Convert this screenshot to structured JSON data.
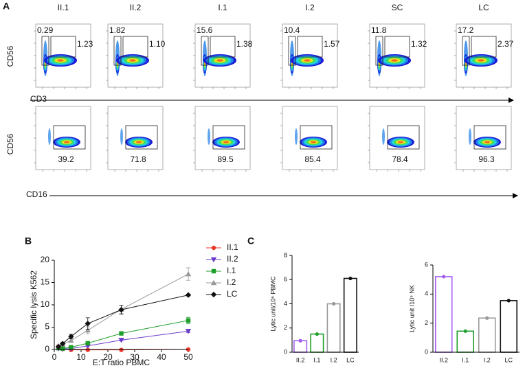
{
  "panel_labels": [
    "A",
    "B",
    "C"
  ],
  "flow": {
    "columns": [
      "II.1",
      "II.2",
      "I.1",
      "I.2",
      "SC",
      "LC"
    ],
    "row1_y_label": "CD56",
    "row1_x_label": "CD3",
    "row2_y_label": "CD56",
    "row2_x_label": "CD16",
    "row1_left_gates": [
      "0.29",
      "1.82",
      "15.6",
      "10.4",
      "11.8",
      "17.2"
    ],
    "row1_right_gates": [
      "1.23",
      "1.10",
      "1.38",
      "1.57",
      "1.32",
      "2.37"
    ],
    "row2_gates": [
      "39.2",
      "71.8",
      "89.5",
      "85.4",
      "78.4",
      "96.3"
    ]
  },
  "chart_data": [
    {
      "type": "line",
      "y_label": "Specific lysis K562",
      "x_label": "E:T ratio PBMC",
      "x": [
        1.5625,
        3.125,
        6.25,
        12.5,
        25,
        50
      ],
      "xlim": [
        0,
        50
      ],
      "xticks": [
        0,
        10,
        20,
        30,
        40,
        50
      ],
      "ylim": [
        0,
        20
      ],
      "yticks": [
        0,
        5,
        10,
        15,
        20
      ],
      "series": [
        {
          "name": "II.1",
          "color": "#e8392b",
          "marker": "circle",
          "values": [
            0.7,
            0.1,
            -0.1,
            -0.1,
            -0.1,
            0
          ],
          "errors": [
            0.3,
            0.1,
            0.1,
            0.1,
            0.1,
            0.1
          ]
        },
        {
          "name": "II.2",
          "color": "#6a3bc9",
          "marker": "triangle-down",
          "values": [
            0.2,
            0.1,
            0.2,
            0.8,
            2.1,
            4.1
          ],
          "errors": [
            0.1,
            0.1,
            0.1,
            0.2,
            0.2,
            0.3
          ]
        },
        {
          "name": "I.1",
          "color": "#1e9e2a",
          "marker": "square",
          "values": [
            0.3,
            0.2,
            0.5,
            1.4,
            3.6,
            6.5
          ],
          "errors": [
            0.1,
            0.1,
            0.2,
            0.3,
            0.4,
            0.7
          ]
        },
        {
          "name": "I.2",
          "color": "#999999",
          "marker": "triangle-up",
          "values": [
            0.8,
            1.2,
            2.0,
            4.3,
            9.0,
            16.9
          ],
          "errors": [
            0.2,
            0.3,
            0.4,
            0.8,
            0.9,
            1.4
          ]
        },
        {
          "name": "LC",
          "color": "#111111",
          "marker": "diamond",
          "values": [
            0.6,
            1.3,
            2.9,
            5.8,
            8.9,
            12.2
          ],
          "errors": [
            0.2,
            0.3,
            0.5,
            1.3,
            1.0,
            0.2
          ]
        }
      ]
    },
    {
      "type": "bar",
      "y_label": "Lytic unit/10⁶ PBMC",
      "categories": [
        "II.2",
        "I.1",
        "I.2",
        "LC"
      ],
      "values": [
        0.95,
        1.5,
        4.0,
        6.1
      ],
      "colors": [
        "#a25cf0",
        "#1e9e2a",
        "#999999",
        "#111111"
      ],
      "ylim": [
        0,
        8
      ],
      "yticks": [
        0,
        2,
        4,
        6,
        8
      ]
    },
    {
      "type": "bar",
      "y_label": "Lytic unit /10⁵ NK",
      "categories": [
        "II.2",
        "I.1",
        "I.2",
        "LC"
      ],
      "values": [
        5.2,
        1.45,
        2.35,
        3.55
      ],
      "colors": [
        "#a25cf0",
        "#1e9e2a",
        "#999999",
        "#111111"
      ],
      "ylim": [
        0,
        6
      ],
      "yticks": [
        0,
        2,
        4,
        6
      ]
    }
  ]
}
